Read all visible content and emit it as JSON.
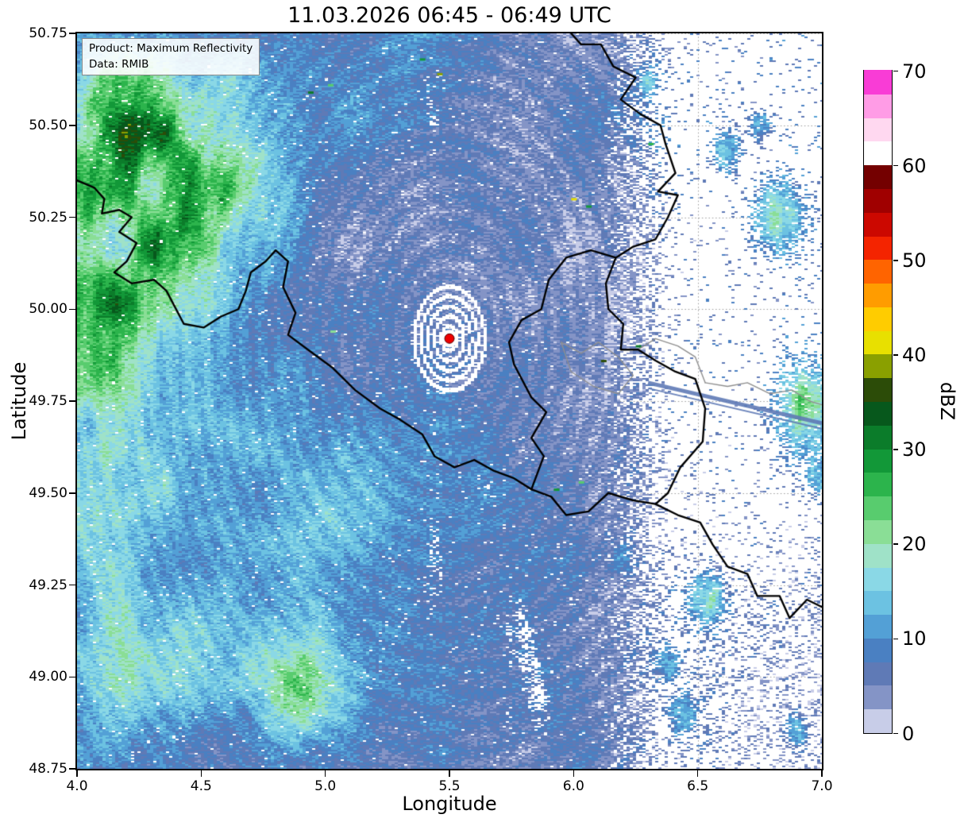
{
  "figure": {
    "title": "11.03.2026 06:45 - 06:49 UTC",
    "info_box": {
      "product": "Product: Maximum Reflectivity",
      "source": "Data: RMIB"
    }
  },
  "chart_data": {
    "type": "heatmap",
    "title": "11.03.2026 06:45 - 06:49 UTC",
    "xlabel": "Longitude",
    "ylabel": "Latitude",
    "xlim": [
      4.0,
      7.0
    ],
    "ylim": [
      48.75,
      50.75
    ],
    "x_ticks": [
      4.0,
      4.5,
      5.0,
      5.5,
      6.0,
      6.5,
      7.0
    ],
    "x_tick_labels": [
      "4.0",
      "4.5",
      "5.0",
      "5.5",
      "6.0",
      "6.5",
      "7.0"
    ],
    "y_ticks": [
      48.75,
      49.0,
      49.25,
      49.5,
      49.75,
      50.0,
      50.25,
      50.5,
      50.75
    ],
    "y_tick_labels": [
      "48.75",
      "49.00",
      "49.25",
      "49.50",
      "49.75",
      "50.00",
      "50.25",
      "50.50",
      "50.75"
    ],
    "grid": true,
    "product": "Maximum Reflectivity",
    "data_source": "RMIB",
    "colorbar": {
      "label": "dBZ",
      "min": 0,
      "max": 70,
      "step": 2.5,
      "ticks": [
        0,
        10,
        20,
        30,
        40,
        50,
        60,
        70
      ],
      "tick_labels": [
        "0",
        "10",
        "20",
        "30",
        "40",
        "50",
        "60",
        "70"
      ],
      "colors": [
        "#c8cde8",
        "#8494c6",
        "#5f7ab6",
        "#4a80c2",
        "#53a0d6",
        "#6cc2e2",
        "#8ad8e6",
        "#9fe2c8",
        "#8ade96",
        "#58cc6e",
        "#2cb44c",
        "#129838",
        "#0b7c2a",
        "#07581c",
        "#2c4c08",
        "#8aa000",
        "#e8e000",
        "#ffcc00",
        "#ff9c00",
        "#ff6400",
        "#f42400",
        "#cc0800",
        "#a00000",
        "#740000",
        "#ffffff",
        "#ffd8f0",
        "#ff9ce6",
        "#f93cd6"
      ]
    },
    "radar_site": {
      "lon": 5.5,
      "lat": 49.92,
      "marker_color": "#ee0000"
    },
    "border_colors": {
      "country": "#000000",
      "region": "#8f8f8f"
    },
    "echo_patches": [
      {
        "lon": 4.05,
        "lat": 49.7,
        "rx": 0.3,
        "ry": 0.6,
        "dbz": 16
      },
      {
        "lon": 4.25,
        "lat": 50.22,
        "rx": 0.4,
        "ry": 0.28,
        "dbz": 18
      },
      {
        "lon": 4.5,
        "lat": 50.47,
        "rx": 0.4,
        "ry": 0.22,
        "dbz": 14
      },
      {
        "lon": 4.12,
        "lat": 50.57,
        "rx": 0.25,
        "ry": 0.18,
        "dbz": 14
      },
      {
        "lon": 4.9,
        "lat": 48.97,
        "rx": 0.22,
        "ry": 0.16,
        "dbz": 16
      },
      {
        "lon": 4.35,
        "lat": 48.98,
        "rx": 0.38,
        "ry": 0.22,
        "dbz": 9
      },
      {
        "lon": 4.4,
        "lat": 50.05,
        "rx": 0.65,
        "ry": 0.85,
        "dbz": 6
      },
      {
        "lon": 5.3,
        "lat": 50.68,
        "rx": 0.5,
        "ry": 0.28,
        "dbz": 5
      },
      {
        "lon": 4.95,
        "lat": 49.45,
        "rx": 0.35,
        "ry": 0.4,
        "dbz": 7
      }
    ],
    "isolated_cells": [
      {
        "lon": 6.83,
        "lat": 50.25,
        "r": 0.1,
        "dbz": 20
      },
      {
        "lon": 6.62,
        "lat": 50.43,
        "r": 0.05,
        "dbz": 14
      },
      {
        "lon": 6.95,
        "lat": 49.72,
        "r": 0.13,
        "dbz": 22
      },
      {
        "lon": 7.0,
        "lat": 49.55,
        "r": 0.06,
        "dbz": 16
      },
      {
        "lon": 6.54,
        "lat": 49.21,
        "r": 0.08,
        "dbz": 20
      },
      {
        "lon": 6.38,
        "lat": 49.03,
        "r": 0.05,
        "dbz": 13
      },
      {
        "lon": 6.44,
        "lat": 48.9,
        "r": 0.06,
        "dbz": 15
      },
      {
        "lon": 6.3,
        "lat": 50.62,
        "r": 0.04,
        "dbz": 12
      },
      {
        "lon": 6.75,
        "lat": 50.5,
        "r": 0.04,
        "dbz": 12
      },
      {
        "lon": 6.2,
        "lat": 49.32,
        "r": 0.05,
        "dbz": 11
      },
      {
        "lon": 6.9,
        "lat": 48.85,
        "r": 0.05,
        "dbz": 13
      }
    ],
    "bright_specks": [
      {
        "lon": 4.94,
        "lat": 50.59,
        "dbz": 32
      },
      {
        "lon": 5.02,
        "lat": 50.61,
        "dbz": 24
      },
      {
        "lon": 5.39,
        "lat": 50.68,
        "dbz": 28
      },
      {
        "lon": 5.46,
        "lat": 50.64,
        "dbz": 38
      },
      {
        "lon": 6.0,
        "lat": 50.3,
        "dbz": 40
      },
      {
        "lon": 6.06,
        "lat": 50.28,
        "dbz": 28
      },
      {
        "lon": 6.12,
        "lat": 49.86,
        "dbz": 36
      },
      {
        "lon": 5.93,
        "lat": 49.51,
        "dbz": 28
      },
      {
        "lon": 6.03,
        "lat": 49.53,
        "dbz": 24
      },
      {
        "lon": 6.26,
        "lat": 49.9,
        "dbz": 32
      },
      {
        "lon": 6.31,
        "lat": 50.45,
        "dbz": 26
      },
      {
        "lon": 5.03,
        "lat": 49.94,
        "dbz": 22
      },
      {
        "lon": 4.58,
        "lat": 50.3,
        "dbz": 30
      },
      {
        "lon": 4.47,
        "lat": 50.21,
        "dbz": 26
      }
    ],
    "beam_artifact": {
      "from": [
        6.3,
        49.8
      ],
      "to": [
        7.0,
        49.69
      ]
    },
    "map_borders": {
      "black": [
        [
          [
            4.0,
            50.35
          ],
          [
            4.07,
            50.33
          ],
          [
            4.11,
            50.3
          ],
          [
            4.1,
            50.26
          ],
          [
            4.17,
            50.27
          ],
          [
            4.22,
            50.25
          ],
          [
            4.17,
            50.21
          ],
          [
            4.24,
            50.18
          ],
          [
            4.2,
            50.13
          ],
          [
            4.15,
            50.1
          ],
          [
            4.22,
            50.07
          ],
          [
            4.31,
            50.08
          ],
          [
            4.36,
            50.05
          ],
          [
            4.43,
            49.96
          ],
          [
            4.51,
            49.95
          ],
          [
            4.58,
            49.98
          ],
          [
            4.65,
            50.0
          ],
          [
            4.68,
            50.05
          ],
          [
            4.7,
            50.1
          ],
          [
            4.76,
            50.13
          ],
          [
            4.8,
            50.16
          ],
          [
            4.85,
            50.13
          ],
          [
            4.83,
            50.06
          ],
          [
            4.88,
            49.99
          ],
          [
            4.85,
            49.93
          ],
          [
            4.93,
            49.89
          ],
          [
            5.03,
            49.84
          ],
          [
            5.12,
            49.78
          ],
          [
            5.22,
            49.73
          ],
          [
            5.3,
            49.7
          ],
          [
            5.39,
            49.66
          ],
          [
            5.44,
            49.6
          ],
          [
            5.52,
            49.57
          ],
          [
            5.6,
            49.59
          ],
          [
            5.68,
            49.56
          ],
          [
            5.76,
            49.54
          ],
          [
            5.83,
            49.51
          ]
        ],
        [
          [
            5.83,
            49.51
          ],
          [
            5.91,
            49.49
          ],
          [
            5.97,
            49.44
          ],
          [
            6.06,
            49.45
          ],
          [
            6.14,
            49.5
          ],
          [
            6.24,
            49.48
          ],
          [
            6.33,
            49.47
          ],
          [
            6.42,
            49.44
          ],
          [
            6.51,
            49.42
          ],
          [
            6.56,
            49.36
          ],
          [
            6.62,
            49.3
          ],
          [
            6.7,
            49.28
          ],
          [
            6.74,
            49.22
          ],
          [
            6.83,
            49.22
          ],
          [
            6.87,
            49.16
          ],
          [
            6.94,
            49.21
          ],
          [
            7.0,
            49.19
          ]
        ],
        [
          [
            5.99,
            50.75
          ],
          [
            6.03,
            50.72
          ],
          [
            6.11,
            50.72
          ],
          [
            6.16,
            50.66
          ],
          [
            6.25,
            50.63
          ],
          [
            6.19,
            50.57
          ],
          [
            6.27,
            50.53
          ],
          [
            6.35,
            50.5
          ],
          [
            6.37,
            50.45
          ],
          [
            6.41,
            50.37
          ],
          [
            6.34,
            50.32
          ],
          [
            6.42,
            50.31
          ],
          [
            6.38,
            50.25
          ],
          [
            6.33,
            50.19
          ],
          [
            6.24,
            50.17
          ],
          [
            6.17,
            50.14
          ]
        ],
        [
          [
            6.17,
            50.14
          ],
          [
            6.13,
            50.07
          ],
          [
            6.14,
            50.0
          ],
          [
            6.2,
            49.96
          ],
          [
            6.19,
            49.89
          ],
          [
            6.26,
            49.89
          ],
          [
            6.33,
            49.86
          ],
          [
            6.41,
            49.83
          ],
          [
            6.49,
            49.81
          ],
          [
            6.53,
            49.73
          ],
          [
            6.52,
            49.64
          ],
          [
            6.43,
            49.57
          ],
          [
            6.38,
            49.5
          ],
          [
            6.33,
            49.47
          ]
        ],
        [
          [
            6.17,
            50.14
          ],
          [
            6.07,
            50.16
          ],
          [
            5.97,
            50.14
          ],
          [
            5.9,
            50.08
          ],
          [
            5.87,
            50.0
          ],
          [
            5.79,
            49.97
          ],
          [
            5.74,
            49.91
          ],
          [
            5.76,
            49.85
          ],
          [
            5.83,
            49.76
          ],
          [
            5.89,
            49.72
          ],
          [
            5.83,
            49.65
          ],
          [
            5.88,
            49.6
          ],
          [
            5.83,
            49.51
          ]
        ]
      ],
      "gray": [
        [
          [
            6.53,
            49.8
          ],
          [
            6.62,
            49.79
          ],
          [
            6.7,
            49.8
          ],
          [
            6.79,
            49.77
          ],
          [
            6.88,
            49.78
          ],
          [
            6.95,
            49.75
          ],
          [
            7.0,
            49.74
          ]
        ],
        [
          [
            5.95,
            49.91
          ],
          [
            6.03,
            49.88
          ],
          [
            6.1,
            49.91
          ],
          [
            6.18,
            49.87
          ],
          [
            6.24,
            49.82
          ],
          [
            6.18,
            49.77
          ],
          [
            6.08,
            49.79
          ],
          [
            5.99,
            49.83
          ],
          [
            5.95,
            49.91
          ]
        ],
        [
          [
            6.26,
            49.89
          ],
          [
            6.33,
            49.92
          ],
          [
            6.42,
            49.9
          ],
          [
            6.49,
            49.87
          ],
          [
            6.53,
            49.8
          ]
        ]
      ]
    }
  }
}
